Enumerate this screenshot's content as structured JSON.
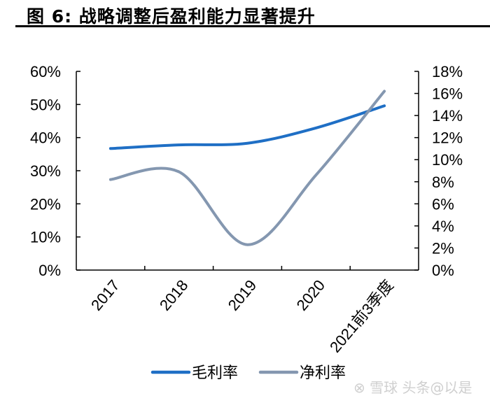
{
  "title": "图 6:  战略调整后盈利能力显著提升",
  "watermark": "雪球 头条@以是",
  "chart_data": {
    "type": "line",
    "title": "图 6:  战略调整后盈利能力显著提升",
    "categories": [
      "2017",
      "2018",
      "2019",
      "2020",
      "2021前3季度"
    ],
    "series": [
      {
        "name": "毛利率",
        "axis": "left",
        "color": "#1F6FC5",
        "values": [
          36.7,
          37.8,
          38.3,
          42.9,
          49.6
        ]
      },
      {
        "name": "净利率",
        "axis": "right",
        "color": "#8497B0",
        "values": [
          8.2,
          8.9,
          2.3,
          8.6,
          16.2
        ]
      }
    ],
    "y_left": {
      "ylim": [
        0,
        60
      ],
      "ticks": [
        "0%",
        "10%",
        "20%",
        "30%",
        "40%",
        "50%",
        "60%"
      ]
    },
    "y_right": {
      "ylim": [
        0,
        18
      ],
      "ticks": [
        "0%",
        "2%",
        "4%",
        "6%",
        "8%",
        "10%",
        "12%",
        "14%",
        "16%",
        "18%"
      ]
    },
    "smooth": true,
    "grid": false,
    "legend": "bottom"
  }
}
